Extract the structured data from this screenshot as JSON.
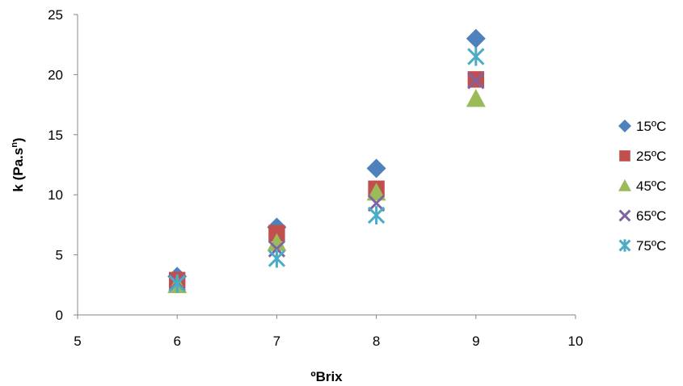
{
  "chart_data": {
    "type": "scatter",
    "title": "",
    "xlabel": "ºBrix",
    "ylabel_main": "k (Pa.s",
    "ylabel_sup": "n",
    "ylabel_close": ")",
    "xlim": [
      5,
      10
    ],
    "ylim": [
      0,
      25
    ],
    "xticks": [
      5,
      6,
      7,
      8,
      9,
      10
    ],
    "yticks": [
      0,
      5,
      10,
      15,
      20,
      25
    ],
    "grid": false,
    "legend_position": "right",
    "series": [
      {
        "name": "15ºC",
        "marker": "diamond",
        "color": "#4F81BD",
        "x": [
          6,
          7,
          8,
          9
        ],
        "y": [
          3.2,
          7.3,
          12.2,
          23.0
        ]
      },
      {
        "name": "25ºC",
        "marker": "square",
        "color": "#C0504D",
        "x": [
          6,
          7,
          8,
          9
        ],
        "y": [
          2.9,
          6.8,
          10.5,
          19.6
        ]
      },
      {
        "name": "45ºC",
        "marker": "triangle",
        "color": "#9BBB59",
        "x": [
          6,
          7,
          8,
          9
        ],
        "y": [
          2.5,
          6.0,
          10.2,
          18.0
        ]
      },
      {
        "name": "65ºC",
        "marker": "x",
        "color": "#8064A2",
        "x": [
          6,
          7,
          8,
          9
        ],
        "y": [
          2.7,
          5.5,
          9.3,
          19.5
        ]
      },
      {
        "name": "75ºC",
        "marker": "star",
        "color": "#4BACC6",
        "x": [
          6,
          7,
          8,
          9
        ],
        "y": [
          2.6,
          4.7,
          8.3,
          21.5
        ]
      }
    ]
  }
}
